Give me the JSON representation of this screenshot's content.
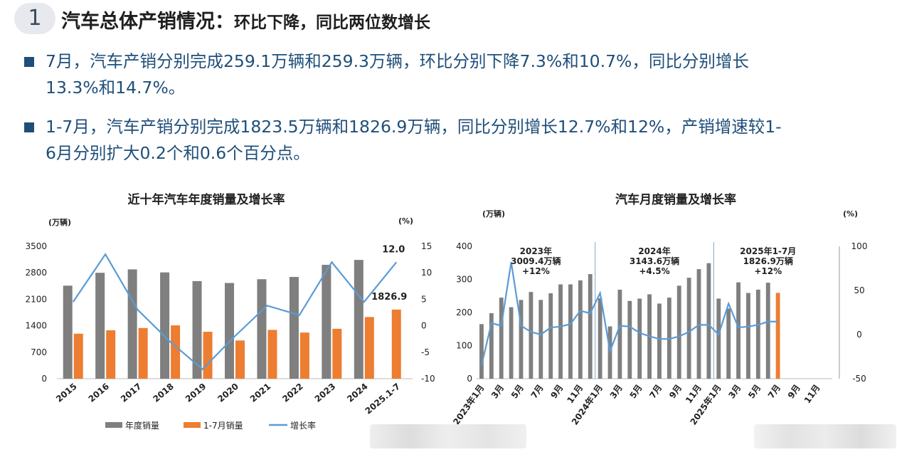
{
  "section": {
    "number": "1",
    "title": "汽车总体产销情况：",
    "subtitle": "环比下降，同比两位数增长"
  },
  "bullets": [
    {
      "line1": "7月，汽车产销分别完成259.1万辆和259.3万辆，环比分别下降7.3%和10.7%，同比分别增长",
      "line2": "13.3%和14.7%。"
    },
    {
      "line1": "1-7月，汽车产销分别完成1823.5万辆和1826.9万辆，同比分别增长12.7%和12%，产销增速较1-",
      "line2": "6月分别扩大0.2个和0.6个百分点。"
    }
  ],
  "colors": {
    "gray": "#7f7f7f",
    "orange": "#ed7d31",
    "blue": "#5b9bd5",
    "text_blue": "#1f4e79"
  },
  "chart_data": [
    {
      "type": "bar",
      "title": "近十年汽车年度销量及增长率",
      "ylabel": "(万辆)",
      "y2label": "(%)",
      "ylim": [
        0,
        3500
      ],
      "yticks": [
        "3500",
        "2800",
        "2100",
        "1400",
        "700",
        "0"
      ],
      "y2lim": [
        -10,
        15
      ],
      "y2ticks": [
        "15",
        "10",
        "5",
        "0",
        "-5",
        "-10"
      ],
      "categories": [
        "2015",
        "2016",
        "2017",
        "2018",
        "2019",
        "2020",
        "2021",
        "2022",
        "2023",
        "2024",
        "2025.1-7"
      ],
      "series": [
        {
          "name": "年度销量",
          "kind": "bar",
          "values": [
            2460,
            2800,
            2890,
            2810,
            2580,
            2530,
            2630,
            2690,
            3010,
            3140,
            null
          ]
        },
        {
          "name": "1-7月销量",
          "kind": "bar",
          "values": [
            1190,
            1280,
            1340,
            1410,
            1240,
            1010,
            1290,
            1220,
            1320,
            1630,
            1826.9
          ]
        },
        {
          "name": "增长率",
          "kind": "line",
          "axis": "right",
          "values": [
            4.5,
            13.5,
            3,
            -3,
            -8.2,
            -2,
            3.8,
            2,
            12,
            4.5,
            12
          ]
        }
      ],
      "annotations": [
        "12.0",
        "1826.9"
      ],
      "legend": [
        "年度销量",
        "1-7月销量",
        "增长率"
      ]
    },
    {
      "type": "bar",
      "title": "汽车月度销量及增长率",
      "ylabel": "(万辆)",
      "y2label": "(%)",
      "ylim": [
        0,
        400
      ],
      "yticks": [
        "400",
        "300",
        "200",
        "100",
        "0"
      ],
      "y2lim": [
        -50,
        100
      ],
      "y2ticks": [
        "100",
        "50",
        "0",
        "-50"
      ],
      "xticks": [
        "2023年1月",
        "3月",
        "5月",
        "7月",
        "9月",
        "11月",
        "2024年1月",
        "3月",
        "5月",
        "7月",
        "9月",
        "11月",
        "2025年1月",
        "3月",
        "5月",
        "7月",
        "9月",
        "11月"
      ],
      "series": [
        {
          "name": "月度销量",
          "kind": "bar",
          "values": [
            165,
            198,
            245,
            216,
            238,
            262,
            238,
            258,
            285,
            285,
            297,
            316,
            243,
            158,
            269,
            235,
            242,
            255,
            227,
            245,
            281,
            305,
            331,
            349,
            242,
            212,
            291,
            259,
            269,
            290,
            259.3
          ]
        },
        {
          "name": "增长率",
          "kind": "line",
          "axis": "right",
          "values": [
            -35,
            13,
            10,
            82,
            10,
            3,
            0,
            8,
            9,
            12,
            27,
            24,
            47,
            -19,
            10,
            9,
            2,
            -2,
            -5,
            -5,
            -2,
            3,
            11,
            11,
            0,
            35,
            8,
            9,
            11,
            14.7,
            14.7
          ]
        },
        {
          "name": "月度销量",
          "kind": "bar",
          "values": [],
          "note": "last bar highlighted orange"
        }
      ],
      "highlight_last": true,
      "periods": [
        {
          "l1": "2023年",
          "l2": "3009.4万辆",
          "l3": "+12%"
        },
        {
          "l1": "2024年",
          "l2": "3143.6万辆",
          "l3": "+4.5%"
        },
        {
          "l1": "2025年1-7月",
          "l2": "1826.9万辆",
          "l3": "+12%"
        }
      ]
    }
  ]
}
